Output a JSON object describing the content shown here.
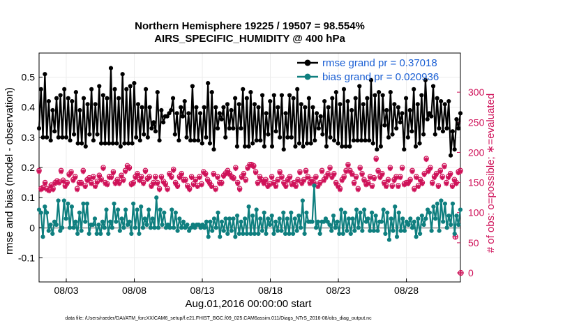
{
  "chart_data": {
    "type": "line",
    "title": "Northern Hemisphere 19225 / 19507 = 98.554%",
    "subtitle": "AIRS_SPECIFIC_HUMIDITY @ 400 hPa",
    "xlabel": "Aug.01,2016 00:00:00 start",
    "ylabel": "rmse and bias (model - observation)",
    "y2label": "# of obs: o=possible; ∗=evaluated",
    "footnote": "data file: /Users/raeder/DAI/ATM_forcXX/CAM6_setup/f.e21.FHIST_BGC.f09_025.CAM6assim.011/Diags_NTrS_2016-08/obs_diag_output.nc",
    "x_ticks": [
      "08/03",
      "08/08",
      "08/13",
      "08/18",
      "08/23",
      "08/28"
    ],
    "x_tick_days": [
      3,
      8,
      13,
      18,
      23,
      28
    ],
    "xlim": [
      1.0,
      31.97
    ],
    "ylim": [
      -0.18,
      0.58
    ],
    "y_ticks": [
      "-0.1",
      "0",
      "0.1",
      "0.2",
      "0.3",
      "0.4",
      "0.5"
    ],
    "y2lim": [
      -15,
      365
    ],
    "y2_ticks": [
      "0",
      "50",
      "100",
      "150",
      "200",
      "250",
      "300"
    ],
    "grid": true,
    "legend_position": "top-right",
    "colors": {
      "rmse": "#000000",
      "bias": "#0f7f7f",
      "obs": "#cf1259",
      "zero_line": "#bbbbbb",
      "legend_text": "#1a5fd4"
    },
    "series": [
      {
        "name": "rmse",
        "legend": "rmse grand pr = 0.37018",
        "values": [
          0.33,
          0.46,
          0.3,
          0.51,
          0.3,
          0.42,
          0.29,
          0.39,
          0.32,
          0.43,
          0.3,
          0.44,
          0.3,
          0.46,
          0.3,
          0.43,
          0.29,
          0.42,
          0.31,
          0.45,
          0.28,
          0.39,
          0.28,
          0.43,
          0.27,
          0.41,
          0.31,
          0.46,
          0.29,
          0.41,
          0.31,
          0.47,
          0.28,
          0.44,
          0.28,
          0.43,
          0.28,
          0.53,
          0.28,
          0.46,
          0.28,
          0.43,
          0.27,
          0.51,
          0.28,
          0.46,
          0.28,
          0.47,
          0.28,
          0.48,
          0.3,
          0.41,
          0.29,
          0.4,
          0.31,
          0.46,
          0.3,
          0.4,
          0.33,
          0.35,
          0.32,
          0.45,
          0.29,
          0.39,
          0.35,
          0.37,
          0.37,
          0.38,
          0.39,
          0.43,
          0.31,
          0.38,
          0.29,
          0.4,
          0.37,
          0.42,
          0.3,
          0.38,
          0.29,
          0.47,
          0.29,
          0.4,
          0.29,
          0.38,
          0.28,
          0.4,
          0.3,
          0.48,
          0.28,
          0.45,
          0.26,
          0.4,
          0.33,
          0.38,
          0.36,
          0.4,
          0.3,
          0.41,
          0.33,
          0.39,
          0.33,
          0.43,
          0.27,
          0.41,
          0.33,
          0.46,
          0.27,
          0.43,
          0.27,
          0.45,
          0.28,
          0.41,
          0.29,
          0.4,
          0.29,
          0.44,
          0.27,
          0.38,
          0.31,
          0.42,
          0.27,
          0.44,
          0.32,
          0.4,
          0.3,
          0.44,
          0.26,
          0.38,
          0.3,
          0.44,
          0.3,
          0.43,
          0.27,
          0.46,
          0.28,
          0.41,
          0.27,
          0.4,
          0.28,
          0.43,
          0.28,
          0.4,
          0.29,
          0.38,
          0.33,
          0.37,
          0.31,
          0.42,
          0.27,
          0.4,
          0.3,
          0.43,
          0.29,
          0.45,
          0.28,
          0.41,
          0.27,
          0.46,
          0.27,
          0.42,
          0.27,
          0.39,
          0.29,
          0.43,
          0.29,
          0.47,
          0.29,
          0.41,
          0.29,
          0.43,
          0.29,
          0.49,
          0.28,
          0.44,
          0.26,
          0.45,
          0.27,
          0.44,
          0.34,
          0.39,
          0.3,
          0.45,
          0.31,
          0.41,
          0.33,
          0.4,
          0.35,
          0.38,
          0.26,
          0.43,
          0.3,
          0.39,
          0.32,
          0.46,
          0.27,
          0.41,
          0.28,
          0.44,
          0.31,
          0.49,
          0.36,
          0.38,
          0.37,
          0.47,
          0.31,
          0.43,
          0.33,
          0.42,
          0.32,
          0.41,
          0.33,
          0.42,
          0.24,
          0.32,
          0.26,
          0.36,
          0.33,
          0.38
        ]
      },
      {
        "name": "bias",
        "legend": "bias grand pr = 0.020936",
        "values": [
          0.06,
          0.05,
          -0.03,
          0.07,
          0.05,
          -0.01,
          0.01,
          -0.02,
          0.02,
          0.01,
          0.09,
          -0.01,
          0.0,
          0.09,
          0.03,
          0.08,
          0.0,
          0.07,
          0.0,
          0.02,
          -0.02,
          0.05,
          -0.01,
          0.08,
          0.02,
          0.08,
          -0.02,
          0.01,
          0.01,
          0.03,
          -0.02,
          0.01,
          -0.02,
          0.02,
          0.0,
          0.06,
          -0.02,
          0.02,
          0.0,
          0.08,
          0.02,
          0.06,
          -0.01,
          0.03,
          0.0,
          0.06,
          0.01,
          0.02,
          -0.02,
          0.08,
          0.0,
          0.06,
          -0.02,
          0.07,
          0.0,
          0.03,
          0.01,
          0.06,
          0.0,
          0.03,
          0.0,
          0.1,
          0.0,
          0.06,
          0.01,
          0.05,
          0.0,
          0.01,
          0.0,
          0.06,
          0.0,
          0.05,
          -0.01,
          0.03,
          0.0,
          0.02,
          0.0,
          0.01,
          -0.01,
          0.0,
          0.01,
          0.0,
          0.01,
          0.01,
          0.0,
          0.01,
          0.0,
          0.02,
          -0.03,
          0.02,
          -0.01,
          0.03,
          0.0,
          0.05,
          -0.03,
          0.02,
          -0.01,
          0.03,
          -0.02,
          0.03,
          -0.01,
          0.03,
          -0.03,
          0.04,
          -0.02,
          0.02,
          -0.02,
          0.03,
          -0.02,
          0.07,
          -0.02,
          0.04,
          -0.02,
          0.06,
          -0.02,
          0.03,
          -0.01,
          0.05,
          -0.02,
          0.03,
          0.01,
          0.04,
          -0.02,
          0.02,
          -0.01,
          0.03,
          -0.01,
          0.05,
          -0.02,
          0.03,
          -0.02,
          0.05,
          -0.02,
          0.03,
          -0.01,
          0.04,
          0.0,
          0.09,
          -0.02,
          0.05,
          0.02,
          0.02,
          0.02,
          0.14,
          0.0,
          0.02,
          -0.02,
          0.02,
          0.02,
          0.03,
          0.02,
          0.01,
          -0.01,
          0.04,
          0.0,
          0.02,
          -0.02,
          0.06,
          -0.02,
          0.05,
          -0.01,
          0.03,
          -0.02,
          0.03,
          -0.01,
          0.06,
          0.0,
          0.05,
          -0.01,
          0.06,
          0.02,
          0.03,
          -0.01,
          0.05,
          -0.01,
          0.04,
          -0.01,
          0.02,
          0.02,
          0.06,
          -0.02,
          0.05,
          -0.04,
          0.03,
          -0.01,
          0.07,
          -0.03,
          0.05,
          -0.01,
          0.03,
          -0.01,
          0.02,
          0.01,
          0.03,
          0.0,
          0.02,
          -0.03,
          0.03,
          -0.02,
          0.04,
          0.01,
          0.03,
          0.06,
          0.05,
          -0.01,
          0.07,
          0.03,
          0.08,
          -0.01,
          0.09,
          0.02,
          0.08,
          0.0,
          0.04,
          0.01,
          0.08,
          -0.02,
          0.04,
          0.01,
          0.06
        ]
      },
      {
        "name": "obs_possible",
        "values": [
          170,
          140,
          142,
          150,
          140,
          138,
          146,
          140,
          150,
          153,
          151,
          170,
          154,
          145,
          150,
          164,
          168,
          155,
          160,
          140,
          150,
          150,
          170,
          145,
          155,
          158,
          150,
          160,
          145,
          152,
          162,
          156,
          175,
          150,
          148,
          160,
          160,
          168,
          150,
          155,
          150,
          162,
          155,
          170,
          178,
          175,
          148,
          150,
          160,
          165,
          155,
          160,
          150,
          170,
          157,
          160,
          145,
          150,
          160,
          150,
          140,
          160,
          152,
          148,
          140,
          165,
          160,
          172,
          150,
          145,
          160,
          165,
          155,
          155,
          145,
          140,
          160,
          148,
          155,
          145,
          160,
          148,
          168,
          165,
          155,
          150,
          145,
          165,
          140,
          160,
          150,
          150,
          162,
          166,
          170,
          165,
          160,
          158,
          175,
          150,
          140,
          160,
          165,
          155,
          175,
          180,
          180,
          178,
          168,
          150,
          160,
          155,
          150,
          155,
          145,
          148,
          160,
          150,
          145,
          155,
          168,
          160,
          150,
          145,
          155,
          160,
          148,
          150,
          145,
          155,
          168,
          150,
          155,
          170,
          160,
          150,
          155,
          150,
          160,
          145,
          150,
          170,
          155,
          160,
          165,
          175,
          160,
          165,
          150,
          145,
          140,
          155,
          160,
          170,
          180,
          170,
          165,
          150,
          160,
          140,
          175,
          165,
          155,
          148,
          150,
          160,
          145,
          158,
          190,
          170,
          160,
          165,
          150,
          145,
          155,
          175,
          145,
          155,
          160,
          145,
          160,
          175,
          148,
          150,
          150,
          155,
          170,
          140,
          160,
          145,
          155,
          150,
          165,
          190,
          170,
          175,
          150,
          160,
          165,
          145,
          170,
          160,
          178,
          150,
          160,
          165,
          145,
          155,
          150,
          168,
          170
        ]
      },
      {
        "name": "obs_evaluated",
        "values": [
          168,
          138,
          140,
          148,
          138,
          136,
          144,
          138,
          148,
          151,
          149,
          168,
          152,
          143,
          148,
          162,
          166,
          153,
          158,
          138,
          148,
          148,
          168,
          143,
          153,
          156,
          148,
          158,
          143,
          150,
          160,
          154,
          173,
          148,
          146,
          158,
          158,
          166,
          148,
          153,
          148,
          160,
          153,
          168,
          176,
          173,
          146,
          148,
          158,
          163,
          153,
          158,
          148,
          168,
          155,
          158,
          143,
          148,
          158,
          148,
          138,
          158,
          150,
          146,
          138,
          163,
          158,
          170,
          148,
          143,
          158,
          163,
          153,
          153,
          143,
          138,
          158,
          146,
          153,
          143,
          158,
          146,
          166,
          163,
          153,
          148,
          143,
          163,
          138,
          158,
          148,
          148,
          160,
          164,
          168,
          163,
          158,
          156,
          173,
          148,
          138,
          158,
          163,
          153,
          173,
          178,
          178,
          176,
          166,
          148,
          158,
          153,
          148,
          153,
          143,
          146,
          158,
          148,
          143,
          153,
          166,
          158,
          148,
          143,
          153,
          158,
          146,
          148,
          143,
          153,
          166,
          148,
          153,
          168,
          158,
          148,
          153,
          148,
          158,
          143,
          148,
          168,
          153,
          158,
          163,
          173,
          158,
          163,
          148,
          143,
          138,
          153,
          158,
          168,
          178,
          168,
          163,
          148,
          158,
          138,
          173,
          163,
          153,
          146,
          148,
          158,
          143,
          156,
          188,
          168,
          158,
          163,
          148,
          143,
          153,
          173,
          143,
          153,
          158,
          143,
          158,
          173,
          146,
          148,
          148,
          153,
          168,
          138,
          158,
          143,
          153,
          148,
          163,
          188,
          168,
          173,
          148,
          158,
          163,
          143,
          168,
          158,
          176,
          148,
          158,
          163,
          143,
          153,
          148,
          166,
          168
        ]
      }
    ],
    "annotations": [
      {
        "series": "obs_possible",
        "label": "0",
        "x": 32.0,
        "y": 0
      },
      {
        "series": "obs_possible",
        "label": "60",
        "x": 31.6,
        "y": 60
      }
    ]
  }
}
